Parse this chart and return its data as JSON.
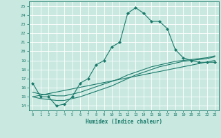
{
  "xlabel": "Humidex (Indice chaleur)",
  "background_color": "#c8e8e0",
  "grid_color": "#ffffff",
  "line_color": "#1a7a6a",
  "xlim": [
    -0.5,
    23.5
  ],
  "ylim": [
    13.5,
    25.5
  ],
  "yticks": [
    14,
    15,
    16,
    17,
    18,
    19,
    20,
    21,
    22,
    23,
    24,
    25
  ],
  "xticks": [
    0,
    1,
    2,
    3,
    4,
    5,
    6,
    7,
    8,
    9,
    10,
    11,
    12,
    13,
    14,
    15,
    16,
    17,
    18,
    19,
    20,
    21,
    22,
    23
  ],
  "series": [
    {
      "x": [
        0,
        1,
        2,
        3,
        4,
        5,
        6,
        7,
        8,
        9,
        10,
        11,
        12,
        13,
        14,
        15,
        16,
        17,
        18,
        19,
        20,
        21,
        22,
        23
      ],
      "y": [
        16.5,
        15.0,
        15.0,
        14.0,
        14.2,
        15.0,
        16.5,
        17.0,
        18.5,
        19.0,
        20.5,
        21.0,
        24.2,
        24.8,
        24.2,
        23.3,
        23.3,
        22.5,
        20.2,
        19.3,
        19.0,
        18.8,
        18.8,
        18.8
      ],
      "marker": "D",
      "markersize": 2.0,
      "linewidth": 0.8
    },
    {
      "x": [
        0,
        1,
        2,
        3,
        4,
        5,
        6,
        7,
        8,
        9,
        10,
        11,
        12,
        13,
        14,
        15,
        16,
        17,
        18,
        19,
        20,
        21,
        22,
        23
      ],
      "y": [
        15.0,
        14.8,
        14.7,
        14.6,
        14.6,
        14.8,
        15.0,
        15.3,
        15.6,
        15.9,
        16.2,
        16.6,
        17.0,
        17.4,
        17.7,
        18.0,
        18.3,
        18.5,
        18.7,
        18.9,
        19.0,
        19.1,
        19.2,
        19.4
      ],
      "marker": null,
      "markersize": 0,
      "linewidth": 0.8
    },
    {
      "x": [
        0,
        1,
        2,
        3,
        4,
        5,
        6,
        7,
        8,
        9,
        10,
        11,
        12,
        13,
        14,
        15,
        16,
        17,
        18,
        19,
        20,
        21,
        22,
        23
      ],
      "y": [
        15.5,
        15.3,
        15.2,
        15.1,
        15.1,
        15.3,
        15.5,
        15.8,
        16.1,
        16.4,
        16.7,
        17.0,
        17.4,
        17.7,
        18.0,
        18.3,
        18.5,
        18.7,
        18.9,
        19.0,
        19.1,
        19.2,
        19.3,
        19.5
      ],
      "marker": null,
      "markersize": 0,
      "linewidth": 0.8
    },
    {
      "x": [
        0,
        23
      ],
      "y": [
        15.0,
        19.0
      ],
      "marker": null,
      "markersize": 0,
      "linewidth": 0.8
    }
  ]
}
